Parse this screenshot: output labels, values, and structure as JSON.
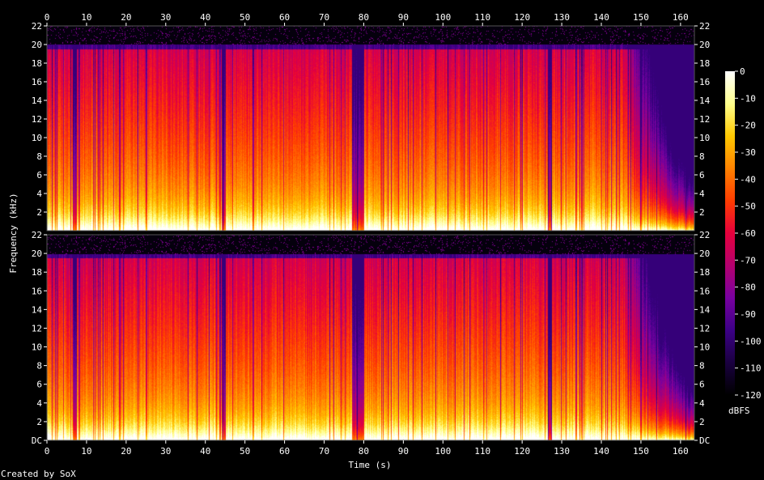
{
  "chart_data": {
    "type": "heatmap",
    "subtype": "spectrogram",
    "channels": 2,
    "xlabel": "Time (s)",
    "ylabel": "Frequency (kHz)",
    "xlim": [
      0,
      163.5
    ],
    "ylim": [
      0,
      22
    ],
    "x_ticks": [
      "0",
      "10",
      "20",
      "30",
      "40",
      "50",
      "60",
      "70",
      "80",
      "90",
      "100",
      "110",
      "120",
      "130",
      "140",
      "150",
      "160"
    ],
    "y_ticks_top": [
      "2",
      "4",
      "6",
      "8",
      "10",
      "12",
      "14",
      "16",
      "18",
      "20",
      "22"
    ],
    "y_ticks_bottom": [
      "DC",
      "2",
      "4",
      "6",
      "8",
      "10",
      "12",
      "14",
      "16",
      "18",
      "20",
      "22"
    ],
    "colorbar": {
      "label": "dBFS",
      "ticks": [
        "0",
        "-10",
        "-20",
        "-30",
        "-40",
        "-50",
        "-60",
        "-70",
        "-80",
        "-90",
        "-100",
        "-110",
        "-120"
      ],
      "range": [
        -120,
        0
      ],
      "colors": [
        "#000000",
        "#1a0040",
        "#3c0087",
        "#7800a0",
        "#b4006e",
        "#e6003c",
        "#ff3c00",
        "#ff8200",
        "#ffc800",
        "#ffff8c",
        "#ffffff"
      ]
    },
    "footer": "Created by SoX",
    "cutoff_khz": 20,
    "fade_start_s": 145,
    "quiet_gaps_s": [
      [
        6.5,
        7.5
      ],
      [
        44,
        45
      ],
      [
        77,
        80
      ],
      [
        126.5,
        127.5
      ]
    ]
  }
}
